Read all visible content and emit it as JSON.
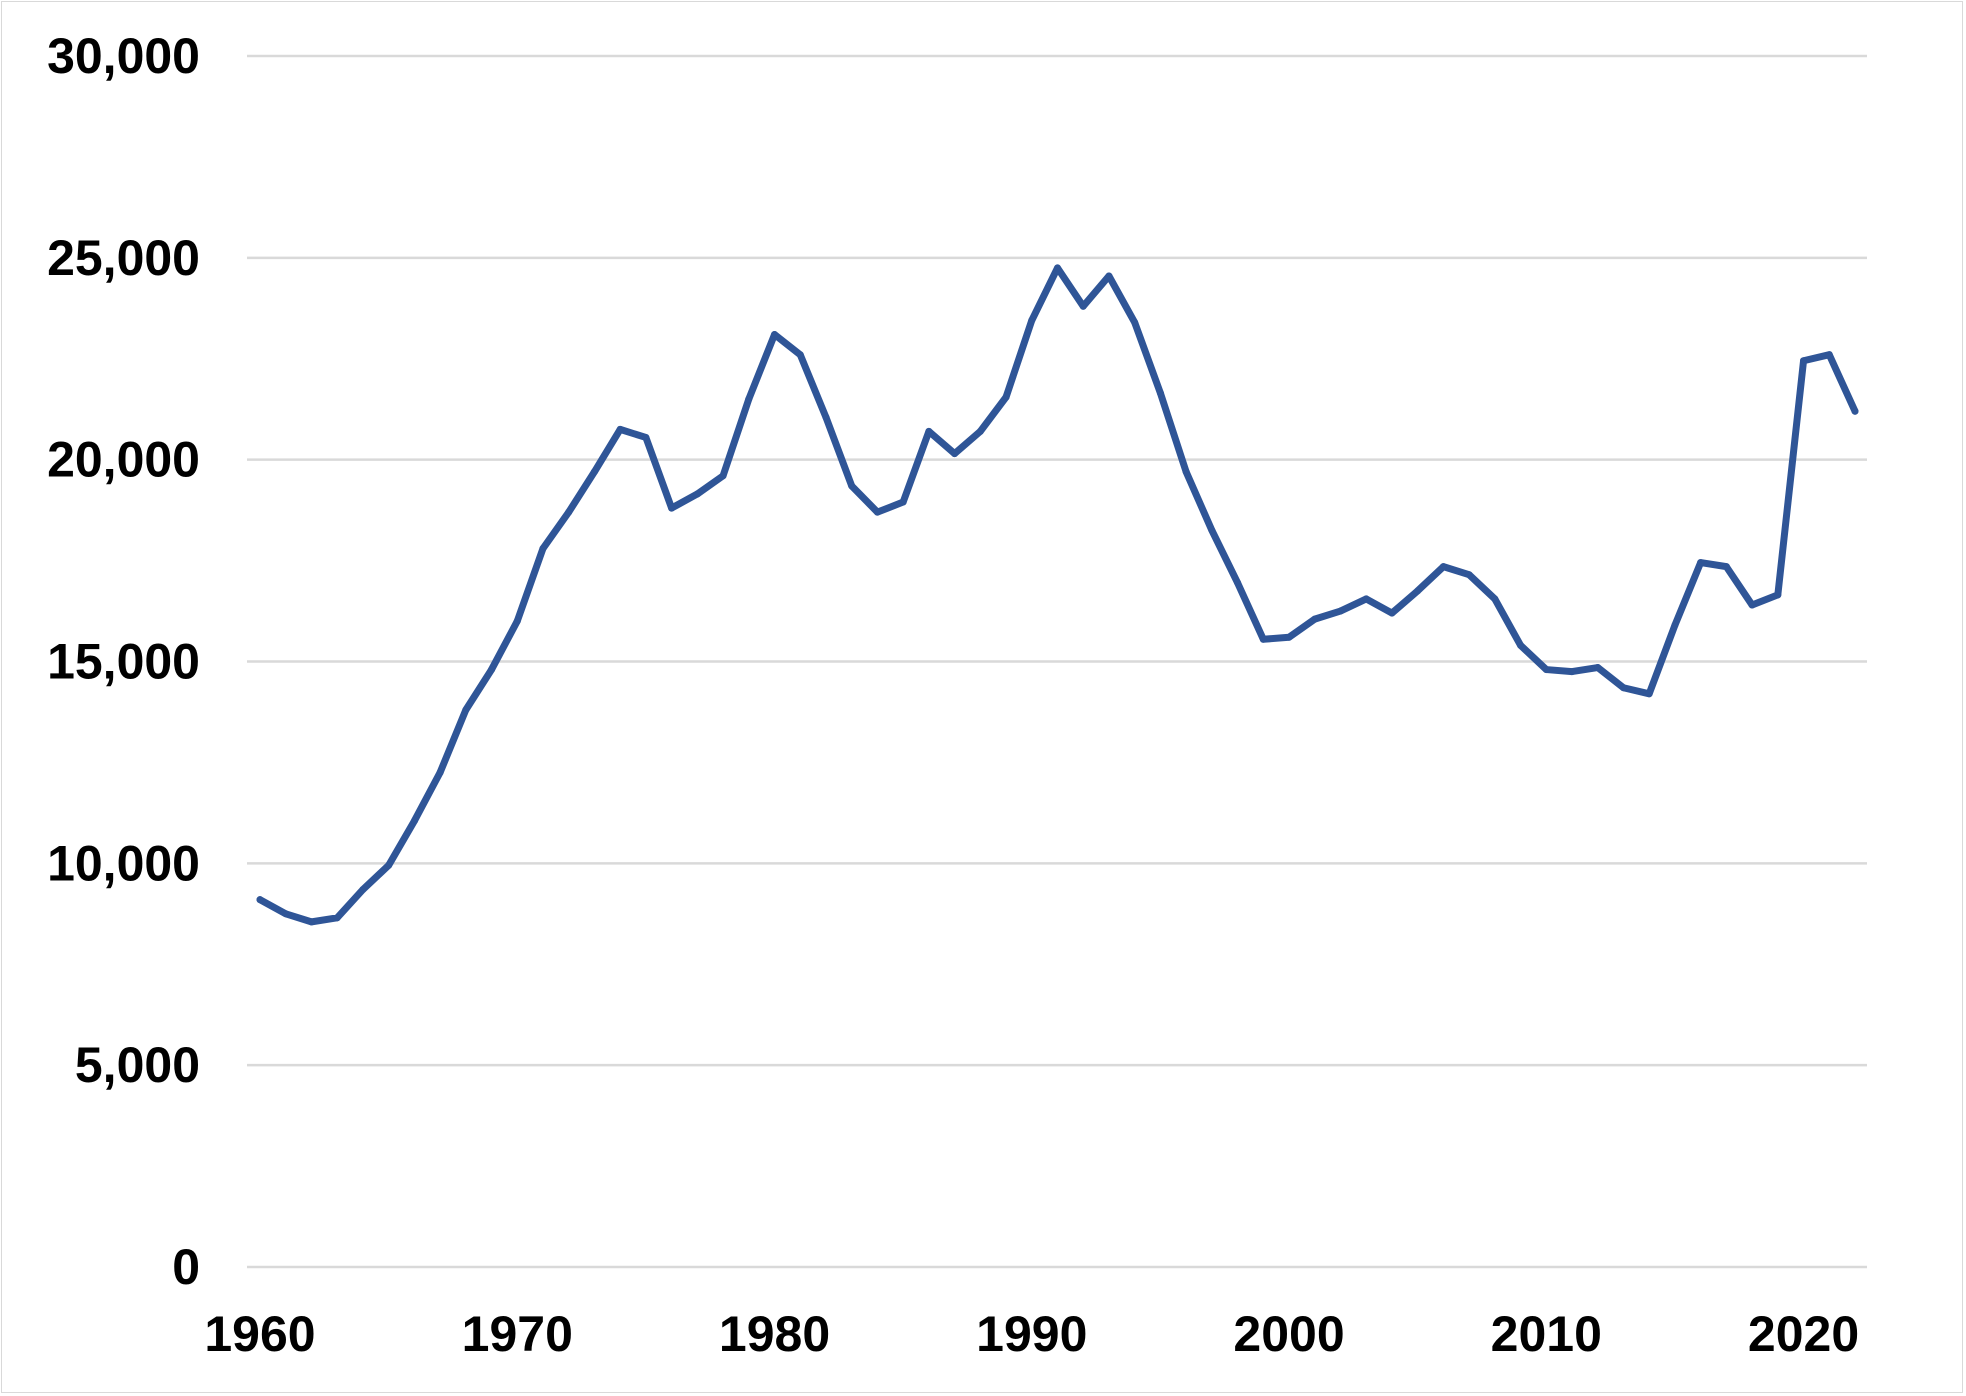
{
  "chart_data": {
    "type": "line",
    "title": "",
    "xlabel": "",
    "ylabel": "",
    "xlim": [
      1960,
      2022
    ],
    "ylim": [
      0,
      30000
    ],
    "grid": true,
    "legend": "none",
    "x_ticks": [
      "1960",
      "1970",
      "1980",
      "1990",
      "2000",
      "2010",
      "2020"
    ],
    "y_ticks": [
      "0",
      "5,000",
      "10,000",
      "15,000",
      "20,000",
      "25,000",
      "30,000"
    ],
    "series": [
      {
        "color": "#2f5597",
        "x": [
          1960,
          1961,
          1962,
          1963,
          1964,
          1965,
          1966,
          1967,
          1968,
          1969,
          1970,
          1971,
          1972,
          1973,
          1974,
          1975,
          1976,
          1977,
          1978,
          1979,
          1980,
          1981,
          1982,
          1983,
          1984,
          1985,
          1986,
          1987,
          1988,
          1989,
          1990,
          1991,
          1992,
          1993,
          1994,
          1995,
          1996,
          1997,
          1998,
          1999,
          2000,
          2001,
          2002,
          2003,
          2004,
          2005,
          2006,
          2007,
          2008,
          2009,
          2010,
          2011,
          2012,
          2013,
          2014,
          2015,
          2016,
          2017,
          2018,
          2019,
          2020,
          2021,
          2022
        ],
        "values": [
          9100,
          8750,
          8550,
          8650,
          9350,
          9950,
          11050,
          12250,
          13800,
          14800,
          16000,
          17800,
          18700,
          19700,
          20750,
          20550,
          18800,
          19150,
          19600,
          21500,
          23100,
          22600,
          21050,
          19350,
          18700,
          18950,
          20700,
          20150,
          20700,
          21550,
          23450,
          24750,
          23800,
          24550,
          23400,
          21650,
          19700,
          18250,
          16950,
          15550,
          15600,
          16050,
          16250,
          16550,
          16200,
          16750,
          17350,
          17150,
          16550,
          15400,
          14800,
          14750,
          14850,
          14350,
          14200,
          15900,
          17450,
          17350,
          16400,
          16650,
          22450,
          22600,
          21200
        ]
      }
    ]
  }
}
